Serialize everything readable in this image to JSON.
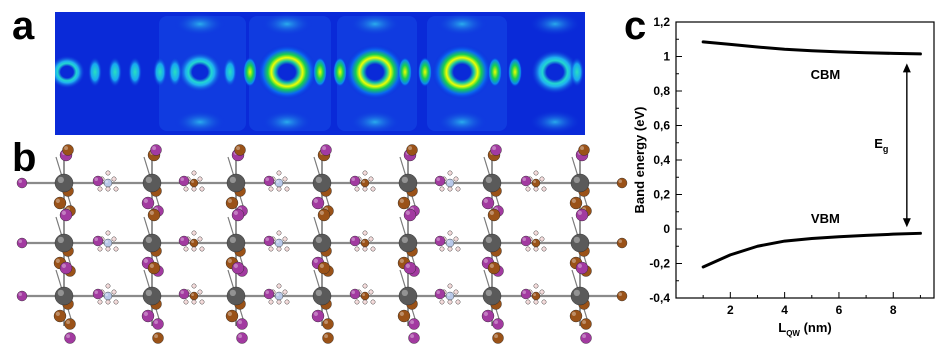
{
  "figure": {
    "panel_labels": {
      "a": "a",
      "b": "b",
      "c": "c"
    }
  },
  "colors": {
    "density_background": "#0a2ad8",
    "density_high": "#f0ff00",
    "density_mid": "#18d050",
    "atom_pb": "#5a5a5a",
    "atom_i": "#a23aa0",
    "atom_br": "#9a5218",
    "atom_n": "#b8c8e8",
    "atom_h": "#f2d8d8",
    "curve": "#000000"
  },
  "structure": {
    "layers": 3,
    "pb_columns": 7,
    "description_icon": "crystal-structure"
  },
  "chart_data": {
    "type": "line",
    "title": "",
    "xlabel_main": "L",
    "xlabel_sub": "QW",
    "xlabel_unit": " (nm)",
    "ylabel": "Band energy (eV)",
    "xlim": [
      0,
      9.5
    ],
    "ylim": [
      -0.4,
      1.2
    ],
    "xticks": [
      2,
      4,
      6,
      8
    ],
    "yticks": [
      -0.4,
      -0.2,
      0,
      0.2,
      0.4,
      0.6,
      0.8,
      1.0,
      1.2
    ],
    "ytick_labels": [
      "-0,4",
      "-0,2",
      "0",
      "0,2",
      "0,4",
      "0,6",
      "0,8",
      "1",
      "1,2"
    ],
    "xtick_labels": [
      "2",
      "4",
      "6",
      "8"
    ],
    "grid": false,
    "series": [
      {
        "name": "CBM",
        "x": [
          1.0,
          2.0,
          3.0,
          4.0,
          5.0,
          6.0,
          7.0,
          8.0,
          9.0
        ],
        "y": [
          1.085,
          1.07,
          1.055,
          1.042,
          1.033,
          1.027,
          1.022,
          1.018,
          1.015
        ]
      },
      {
        "name": "VBM",
        "x": [
          1.0,
          2.0,
          3.0,
          4.0,
          5.0,
          6.0,
          7.0,
          8.0,
          9.0
        ],
        "y": [
          -0.22,
          -0.15,
          -0.1,
          -0.07,
          -0.055,
          -0.045,
          -0.037,
          -0.03,
          -0.025
        ]
      }
    ],
    "annotations": {
      "cbm_label": "CBM",
      "vbm_label": "VBM",
      "eg_main": "E",
      "eg_sub": "g",
      "arrow_x": 8.5,
      "arrow_from": 0.01,
      "arrow_to": 0.96
    }
  }
}
